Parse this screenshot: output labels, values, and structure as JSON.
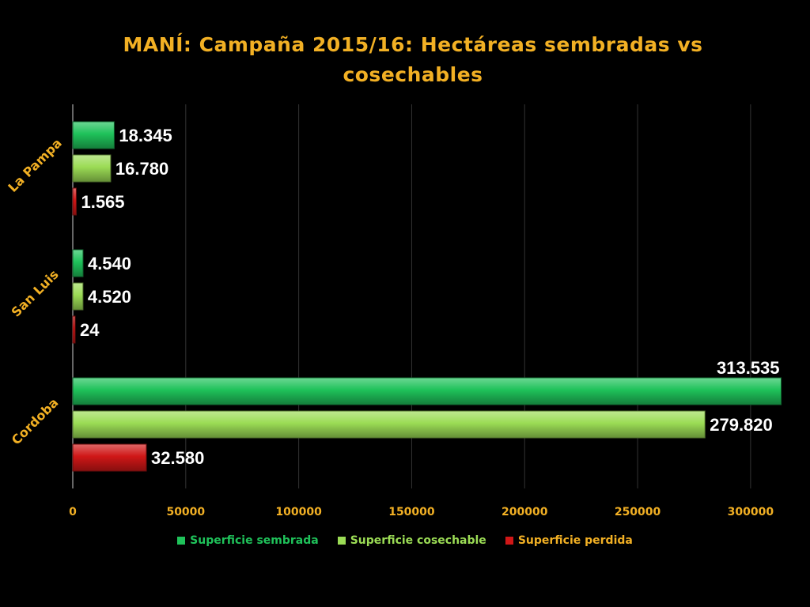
{
  "chart_data": {
    "type": "bar",
    "orientation": "horizontal",
    "title": "MANÍ: Campaña 2015/16: Hectáreas sembradas vs cosechables",
    "categories": [
      "La Pampa",
      "San Luis",
      "Cordoba"
    ],
    "series": [
      {
        "name": "Superficie sembrada",
        "color": "#1fc25a",
        "values": [
          18345,
          4540,
          313535
        ],
        "labels": [
          "18.345",
          "4.540",
          "313.535"
        ]
      },
      {
        "name": "Superficie cosechable",
        "color": "#9bdc55",
        "values": [
          16780,
          4520,
          279820
        ],
        "labels": [
          "16.780",
          "4.520",
          "279.820"
        ]
      },
      {
        "name": "Superficie perdida",
        "color": "#d01717",
        "values": [
          1565,
          24,
          32580
        ],
        "labels": [
          "1.565",
          "24",
          "32.580"
        ]
      }
    ],
    "xlim": [
      0,
      320000
    ],
    "xticks": [
      "0",
      "50000",
      "100000",
      "150000",
      "200000",
      "250000",
      "300000"
    ],
    "grid": true,
    "legend_position": "bottom",
    "colors": {
      "title": "#f2b024",
      "axis_text": "#f2b024",
      "data_labels": "#ffffff",
      "grid": "#333333"
    }
  }
}
